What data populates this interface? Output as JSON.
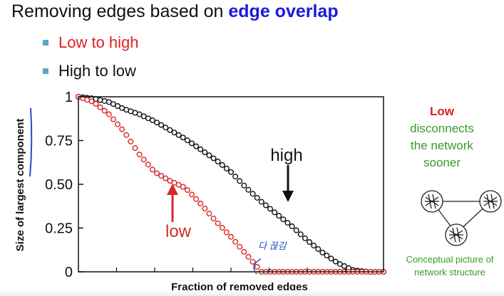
{
  "slide": {
    "title_prefix": "Removing edges based on ",
    "title_accent": "edge overlap",
    "bullets": [
      {
        "label": "Low to high",
        "color": "#e02020"
      },
      {
        "label": "High to low",
        "color": "#111111"
      }
    ]
  },
  "side_note": {
    "low": "Low",
    "rest": "disconnects the network sooner",
    "caption": "Conceptual picture of network structure"
  },
  "chart_data": {
    "type": "line",
    "xlabel": "Fraction of removed edges",
    "ylabel": "Size of largest component",
    "ylim": [
      0,
      1
    ],
    "xlim": [
      0,
      1
    ],
    "yticks": [
      "0",
      "0.25",
      "0.50",
      "0.75",
      "1"
    ],
    "grid": false,
    "annotations": [
      {
        "text": "high",
        "color": "#111111"
      },
      {
        "text": "low",
        "color": "#d62828"
      }
    ],
    "handwritten_note": "다 끊김",
    "series": [
      {
        "name": "high",
        "color": "#111111",
        "x": [
          0,
          0.05,
          0.1,
          0.15,
          0.2,
          0.25,
          0.3,
          0.35,
          0.4,
          0.45,
          0.5,
          0.55,
          0.6,
          0.65,
          0.7,
          0.75,
          0.8,
          0.85,
          0.9,
          0.95,
          1.0
        ],
        "y": [
          1.0,
          0.99,
          0.97,
          0.93,
          0.9,
          0.86,
          0.81,
          0.76,
          0.7,
          0.64,
          0.57,
          0.48,
          0.4,
          0.33,
          0.26,
          0.18,
          0.11,
          0.05,
          0.01,
          0.0,
          0.0
        ]
      },
      {
        "name": "low",
        "color": "#d62828",
        "x": [
          0,
          0.05,
          0.1,
          0.15,
          0.2,
          0.25,
          0.3,
          0.35,
          0.4,
          0.45,
          0.5,
          0.55,
          0.6,
          0.65,
          0.7,
          0.75,
          0.8,
          0.85,
          0.9,
          0.95,
          1.0
        ],
        "y": [
          1.0,
          0.97,
          0.9,
          0.8,
          0.67,
          0.57,
          0.52,
          0.48,
          0.39,
          0.29,
          0.2,
          0.1,
          0.0,
          0.0,
          0.0,
          0.0,
          0.0,
          0.0,
          0.0,
          0.0,
          0.0
        ]
      }
    ]
  }
}
